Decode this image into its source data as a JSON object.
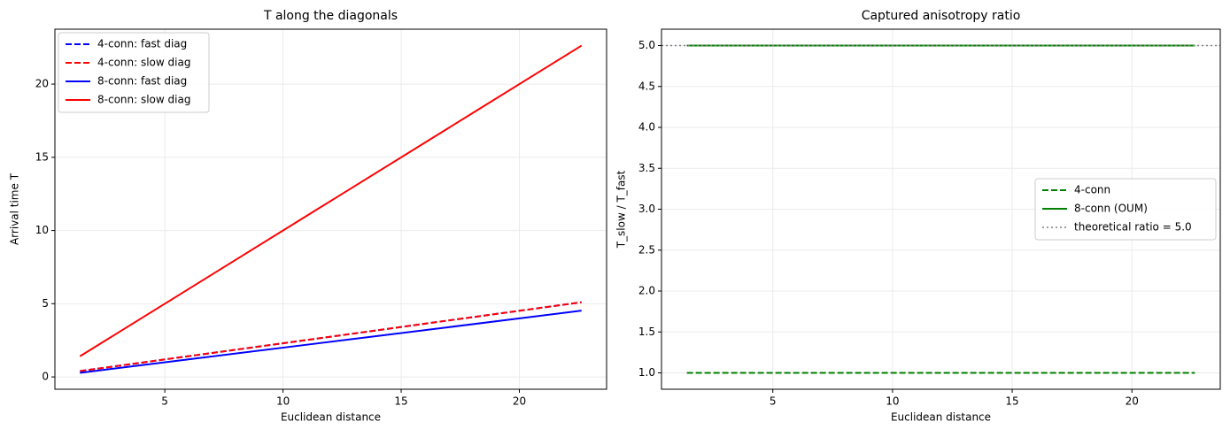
{
  "chart_data": [
    {
      "type": "line",
      "title": "T along the diagonals",
      "xlabel": "Euclidean distance",
      "ylabel": "Arrival time T",
      "x": [
        1.41,
        5.66,
        11.31,
        16.97,
        22.63
      ],
      "series": [
        {
          "name": "4-conn: fast diag",
          "color": "#0000ff",
          "style": "dashed",
          "values": [
            0.4,
            1.34,
            2.59,
            3.85,
            5.1
          ]
        },
        {
          "name": "4-conn: slow diag",
          "color": "#ff0000",
          "style": "dashed",
          "values": [
            0.4,
            1.34,
            2.59,
            3.85,
            5.1
          ]
        },
        {
          "name": "8-conn: fast diag",
          "color": "#0000ff",
          "style": "solid",
          "values": [
            0.28,
            1.13,
            2.26,
            3.39,
            4.53
          ]
        },
        {
          "name": "8-conn: slow diag",
          "color": "#ff0000",
          "style": "solid",
          "values": [
            1.41,
            5.66,
            11.31,
            16.97,
            22.63
          ]
        }
      ],
      "xlim": [
        0.35,
        23.69
      ],
      "xticks": [
        5,
        10,
        15,
        20
      ],
      "ylim": [
        -0.84,
        23.75
      ],
      "yticks": [
        0,
        5,
        10,
        15,
        20
      ],
      "grid": true,
      "legend": "upper left"
    },
    {
      "type": "line",
      "title": "Captured anisotropy ratio",
      "xlabel": "Euclidean distance",
      "ylabel": "T_slow / T_fast",
      "x": [
        1.41,
        5.66,
        11.31,
        16.97,
        22.63
      ],
      "series": [
        {
          "name": "4-conn",
          "color": "#008000",
          "style": "dashed",
          "values": [
            1,
            1,
            1,
            1,
            1
          ]
        },
        {
          "name": "8-conn (OUM)",
          "color": "#008000",
          "style": "solid",
          "values": [
            5,
            5,
            5,
            5,
            5
          ]
        },
        {
          "name": "theoretical ratio = 5.0",
          "color": "#808080",
          "style": "dotted",
          "hline": 5
        }
      ],
      "xlim": [
        0.35,
        23.69
      ],
      "xticks": [
        5,
        10,
        15,
        20
      ],
      "ylim": [
        0.8,
        5.2
      ],
      "yticks": [
        {
          "value": 1,
          "label": "1.0"
        },
        {
          "value": 1.5,
          "label": "1.5"
        },
        {
          "value": 2,
          "label": "2.0"
        },
        {
          "value": 2.5,
          "label": "2.5"
        },
        {
          "value": 3,
          "label": "3.0"
        },
        {
          "value": 3.5,
          "label": "3.5"
        },
        {
          "value": 4,
          "label": "4.0"
        },
        {
          "value": 4.5,
          "label": "4.5"
        },
        {
          "value": 5,
          "label": "5.0"
        }
      ],
      "grid": true,
      "legend": "center right"
    }
  ]
}
